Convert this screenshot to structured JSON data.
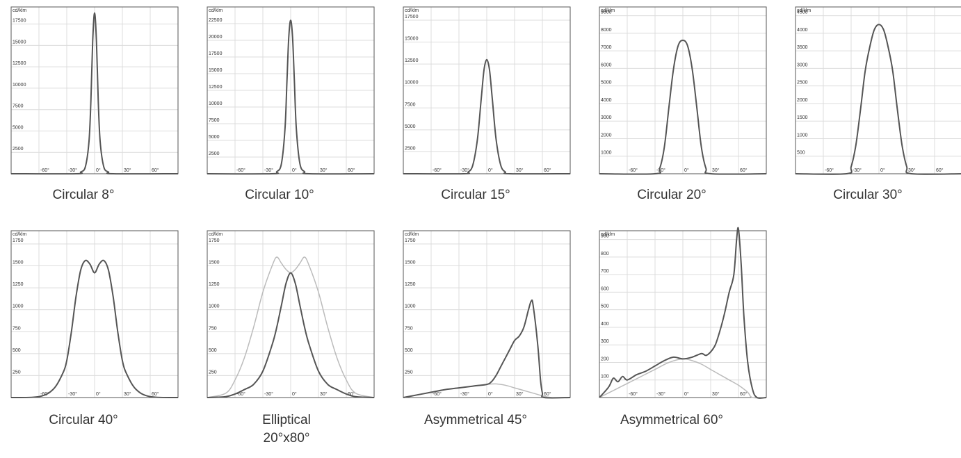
{
  "colors": {
    "primary_curve": "#555555",
    "secondary_curve": "#bbbbbb",
    "grid": "#dcdcdc",
    "frame": "#555555"
  },
  "chart_data": [
    {
      "type": "line",
      "caption": "Circular 8°",
      "unit_label": "cd/klm",
      "x_ticks": [
        "-60°",
        "-30°",
        "0°",
        "30°",
        "60°"
      ],
      "xlim": [
        -90,
        90
      ],
      "y_ticks": [
        "2500",
        "5000",
        "7500",
        "10000",
        "12500",
        "15000",
        "17500"
      ],
      "ylim": [
        0,
        19500
      ],
      "grid": true,
      "series": [
        {
          "role": "primary",
          "x": [
            -90,
            -20,
            -15,
            -10,
            -6,
            -4,
            -2,
            0,
            2,
            4,
            6,
            10,
            15,
            20,
            90
          ],
          "y": [
            0,
            0,
            200,
            800,
            3800,
            8500,
            15500,
            18800,
            15500,
            8500,
            3800,
            800,
            200,
            0,
            0
          ]
        }
      ]
    },
    {
      "type": "line",
      "caption": "Circular 10°",
      "unit_label": "cd/klm",
      "x_ticks": [
        "-60°",
        "-30°",
        "0°",
        "30°",
        "60°"
      ],
      "xlim": [
        -90,
        90
      ],
      "y_ticks": [
        "2500",
        "5000",
        "7500",
        "10000",
        "12500",
        "15000",
        "17500",
        "20000",
        "22500"
      ],
      "ylim": [
        0,
        25000
      ],
      "grid": true,
      "series": [
        {
          "role": "primary",
          "x": [
            -90,
            -20,
            -15,
            -10,
            -6,
            -4,
            -2,
            0,
            2,
            4,
            6,
            10,
            15,
            20,
            90
          ],
          "y": [
            0,
            0,
            300,
            1500,
            7000,
            14000,
            20500,
            23000,
            20500,
            14000,
            7000,
            1500,
            300,
            0,
            0
          ]
        }
      ]
    },
    {
      "type": "line",
      "caption": "Circular 15°",
      "unit_label": "cd/klm",
      "x_ticks": [
        "-60°",
        "-30°",
        "0°",
        "30°",
        "60°"
      ],
      "xlim": [
        -90,
        90
      ],
      "y_ticks": [
        "2500",
        "5000",
        "7500",
        "10000",
        "12500",
        "15000",
        "17500"
      ],
      "ylim": [
        0,
        19000
      ],
      "grid": true,
      "series": [
        {
          "role": "primary",
          "x": [
            -90,
            -25,
            -20,
            -15,
            -10,
            -6,
            -3,
            0,
            3,
            6,
            10,
            15,
            20,
            25,
            90
          ],
          "y": [
            0,
            0,
            200,
            1000,
            4000,
            8500,
            11800,
            13000,
            11800,
            8500,
            4000,
            1000,
            200,
            0,
            0
          ]
        }
      ]
    },
    {
      "type": "line",
      "caption": "Circular 20°",
      "unit_label": "cd/klm",
      "x_ticks": [
        "-60°",
        "-30°",
        "0°",
        "30°",
        "60°"
      ],
      "xlim": [
        -90,
        90
      ],
      "y_ticks": [
        "1000",
        "2000",
        "3000",
        "4000",
        "5000",
        "6000",
        "7000",
        "8000",
        "9000"
      ],
      "ylim": [
        0,
        9500
      ],
      "grid": true,
      "series": [
        {
          "role": "primary",
          "x": [
            -90,
            -30,
            -25,
            -20,
            -15,
            -10,
            -5,
            0,
            5,
            10,
            15,
            20,
            25,
            30,
            90
          ],
          "y": [
            0,
            0,
            300,
            1500,
            3800,
            6000,
            7300,
            7600,
            7300,
            6000,
            3800,
            1500,
            300,
            0,
            0
          ]
        }
      ]
    },
    {
      "type": "line",
      "caption": "Circular 30°",
      "unit_label": "cd/klm",
      "x_ticks": [
        "-60°",
        "-30°",
        "0°",
        "30°",
        "60°"
      ],
      "xlim": [
        -90,
        90
      ],
      "y_ticks": [
        "500",
        "1000",
        "1500",
        "2000",
        "2500",
        "3000",
        "3500",
        "4000",
        "4500"
      ],
      "ylim": [
        0,
        4750
      ],
      "grid": true,
      "series": [
        {
          "role": "primary",
          "x": [
            -90,
            -35,
            -30,
            -25,
            -20,
            -15,
            -10,
            -5,
            0,
            5,
            10,
            15,
            20,
            25,
            30,
            35,
            90
          ],
          "y": [
            0,
            0,
            200,
            800,
            1800,
            2900,
            3600,
            4100,
            4250,
            4100,
            3600,
            2900,
            1800,
            800,
            200,
            0,
            0
          ]
        }
      ]
    },
    {
      "type": "line",
      "caption": "Circular 40°",
      "unit_label": "cd/klm",
      "x_ticks": [
        "-60°",
        "-30°",
        "0°",
        "30°",
        "60°"
      ],
      "xlim": [
        -90,
        90
      ],
      "y_ticks": [
        "250",
        "500",
        "750",
        "1000",
        "1250",
        "1500",
        "1750"
      ],
      "ylim": [
        0,
        1900
      ],
      "grid": true,
      "series": [
        {
          "role": "primary",
          "x": [
            -90,
            -60,
            -45,
            -35,
            -30,
            -25,
            -20,
            -15,
            -10,
            -5,
            0,
            5,
            10,
            15,
            20,
            25,
            30,
            35,
            45,
            60,
            90
          ],
          "y": [
            0,
            10,
            90,
            260,
            420,
            750,
            1150,
            1450,
            1560,
            1520,
            1420,
            1520,
            1560,
            1450,
            1150,
            750,
            420,
            260,
            90,
            10,
            0
          ]
        }
      ]
    },
    {
      "type": "line",
      "caption": "Elliptical 20°x80°",
      "unit_label": "cd/klm",
      "x_ticks": [
        "-60°",
        "-30°",
        "0°",
        "30°",
        "60°"
      ],
      "xlim": [
        -90,
        90
      ],
      "y_ticks": [
        "250",
        "500",
        "750",
        "1000",
        "1250",
        "1500",
        "1750"
      ],
      "ylim": [
        0,
        1900
      ],
      "grid": true,
      "series": [
        {
          "role": "secondary",
          "x": [
            -90,
            -70,
            -60,
            -50,
            -40,
            -30,
            -20,
            -15,
            -10,
            -5,
            0,
            5,
            10,
            15,
            20,
            30,
            40,
            50,
            60,
            70,
            90
          ],
          "y": [
            0,
            50,
            200,
            450,
            800,
            1200,
            1500,
            1600,
            1530,
            1460,
            1420,
            1460,
            1530,
            1600,
            1500,
            1200,
            800,
            450,
            200,
            50,
            0
          ]
        },
        {
          "role": "primary",
          "x": [
            -90,
            -70,
            -60,
            -50,
            -40,
            -30,
            -20,
            -15,
            -10,
            -5,
            0,
            5,
            10,
            15,
            20,
            30,
            40,
            50,
            60,
            70,
            90
          ],
          "y": [
            0,
            10,
            40,
            90,
            150,
            300,
            600,
            800,
            1050,
            1300,
            1420,
            1300,
            1050,
            800,
            600,
            300,
            150,
            90,
            40,
            10,
            0
          ]
        }
      ]
    },
    {
      "type": "line",
      "caption": "Asymmetrical 45°",
      "unit_label": "cd/klm",
      "x_ticks": [
        "-60°",
        "-30°",
        "0°",
        "30°",
        "60°"
      ],
      "xlim": [
        -90,
        90
      ],
      "y_ticks": [
        "250",
        "500",
        "750",
        "1000",
        "1250",
        "1500",
        "1750"
      ],
      "ylim": [
        0,
        1900
      ],
      "grid": true,
      "series": [
        {
          "role": "secondary",
          "x": [
            -90,
            -75,
            -60,
            -45,
            -30,
            -15,
            0,
            10,
            20,
            30,
            40,
            50,
            60,
            70,
            90
          ],
          "y": [
            0,
            30,
            60,
            90,
            110,
            130,
            150,
            155,
            140,
            110,
            80,
            50,
            20,
            0,
            0
          ]
        },
        {
          "role": "primary",
          "x": [
            -90,
            -75,
            -60,
            -45,
            -30,
            -15,
            0,
            5,
            10,
            15,
            20,
            25,
            30,
            35,
            40,
            45,
            48,
            50,
            55,
            58,
            60,
            62,
            90
          ],
          "y": [
            0,
            30,
            60,
            90,
            110,
            130,
            150,
            180,
            250,
            350,
            450,
            550,
            650,
            700,
            800,
            1000,
            1100,
            1050,
            600,
            200,
            50,
            0,
            0
          ]
        }
      ]
    },
    {
      "type": "line",
      "caption": "Asymmetrical 60°",
      "unit_label": "cd/klm",
      "x_ticks": [
        "-60°",
        "-30°",
        "0°",
        "30°",
        "60°"
      ],
      "xlim": [
        -90,
        90
      ],
      "y_ticks": [
        "100",
        "200",
        "300",
        "400",
        "500",
        "600",
        "700",
        "800",
        "900"
      ],
      "ylim": [
        0,
        950
      ],
      "grid": true,
      "series": [
        {
          "role": "secondary",
          "x": [
            -90,
            -75,
            -60,
            -45,
            -30,
            -15,
            0,
            10,
            20,
            30,
            40,
            50,
            60,
            70,
            75,
            90
          ],
          "y": [
            0,
            40,
            80,
            120,
            160,
            200,
            220,
            210,
            190,
            160,
            130,
            100,
            70,
            30,
            0,
            0
          ]
        },
        {
          "role": "primary",
          "x": [
            -90,
            -80,
            -75,
            -70,
            -65,
            -60,
            -50,
            -40,
            -30,
            -20,
            -10,
            0,
            10,
            20,
            25,
            30,
            35,
            40,
            45,
            50,
            55,
            58,
            60,
            63,
            66,
            70,
            75,
            80,
            90
          ],
          "y": [
            0,
            60,
            110,
            90,
            120,
            100,
            130,
            150,
            180,
            210,
            230,
            220,
            230,
            250,
            240,
            260,
            300,
            380,
            480,
            600,
            700,
            900,
            960,
            750,
            450,
            200,
            50,
            0,
            0
          ]
        }
      ]
    }
  ]
}
